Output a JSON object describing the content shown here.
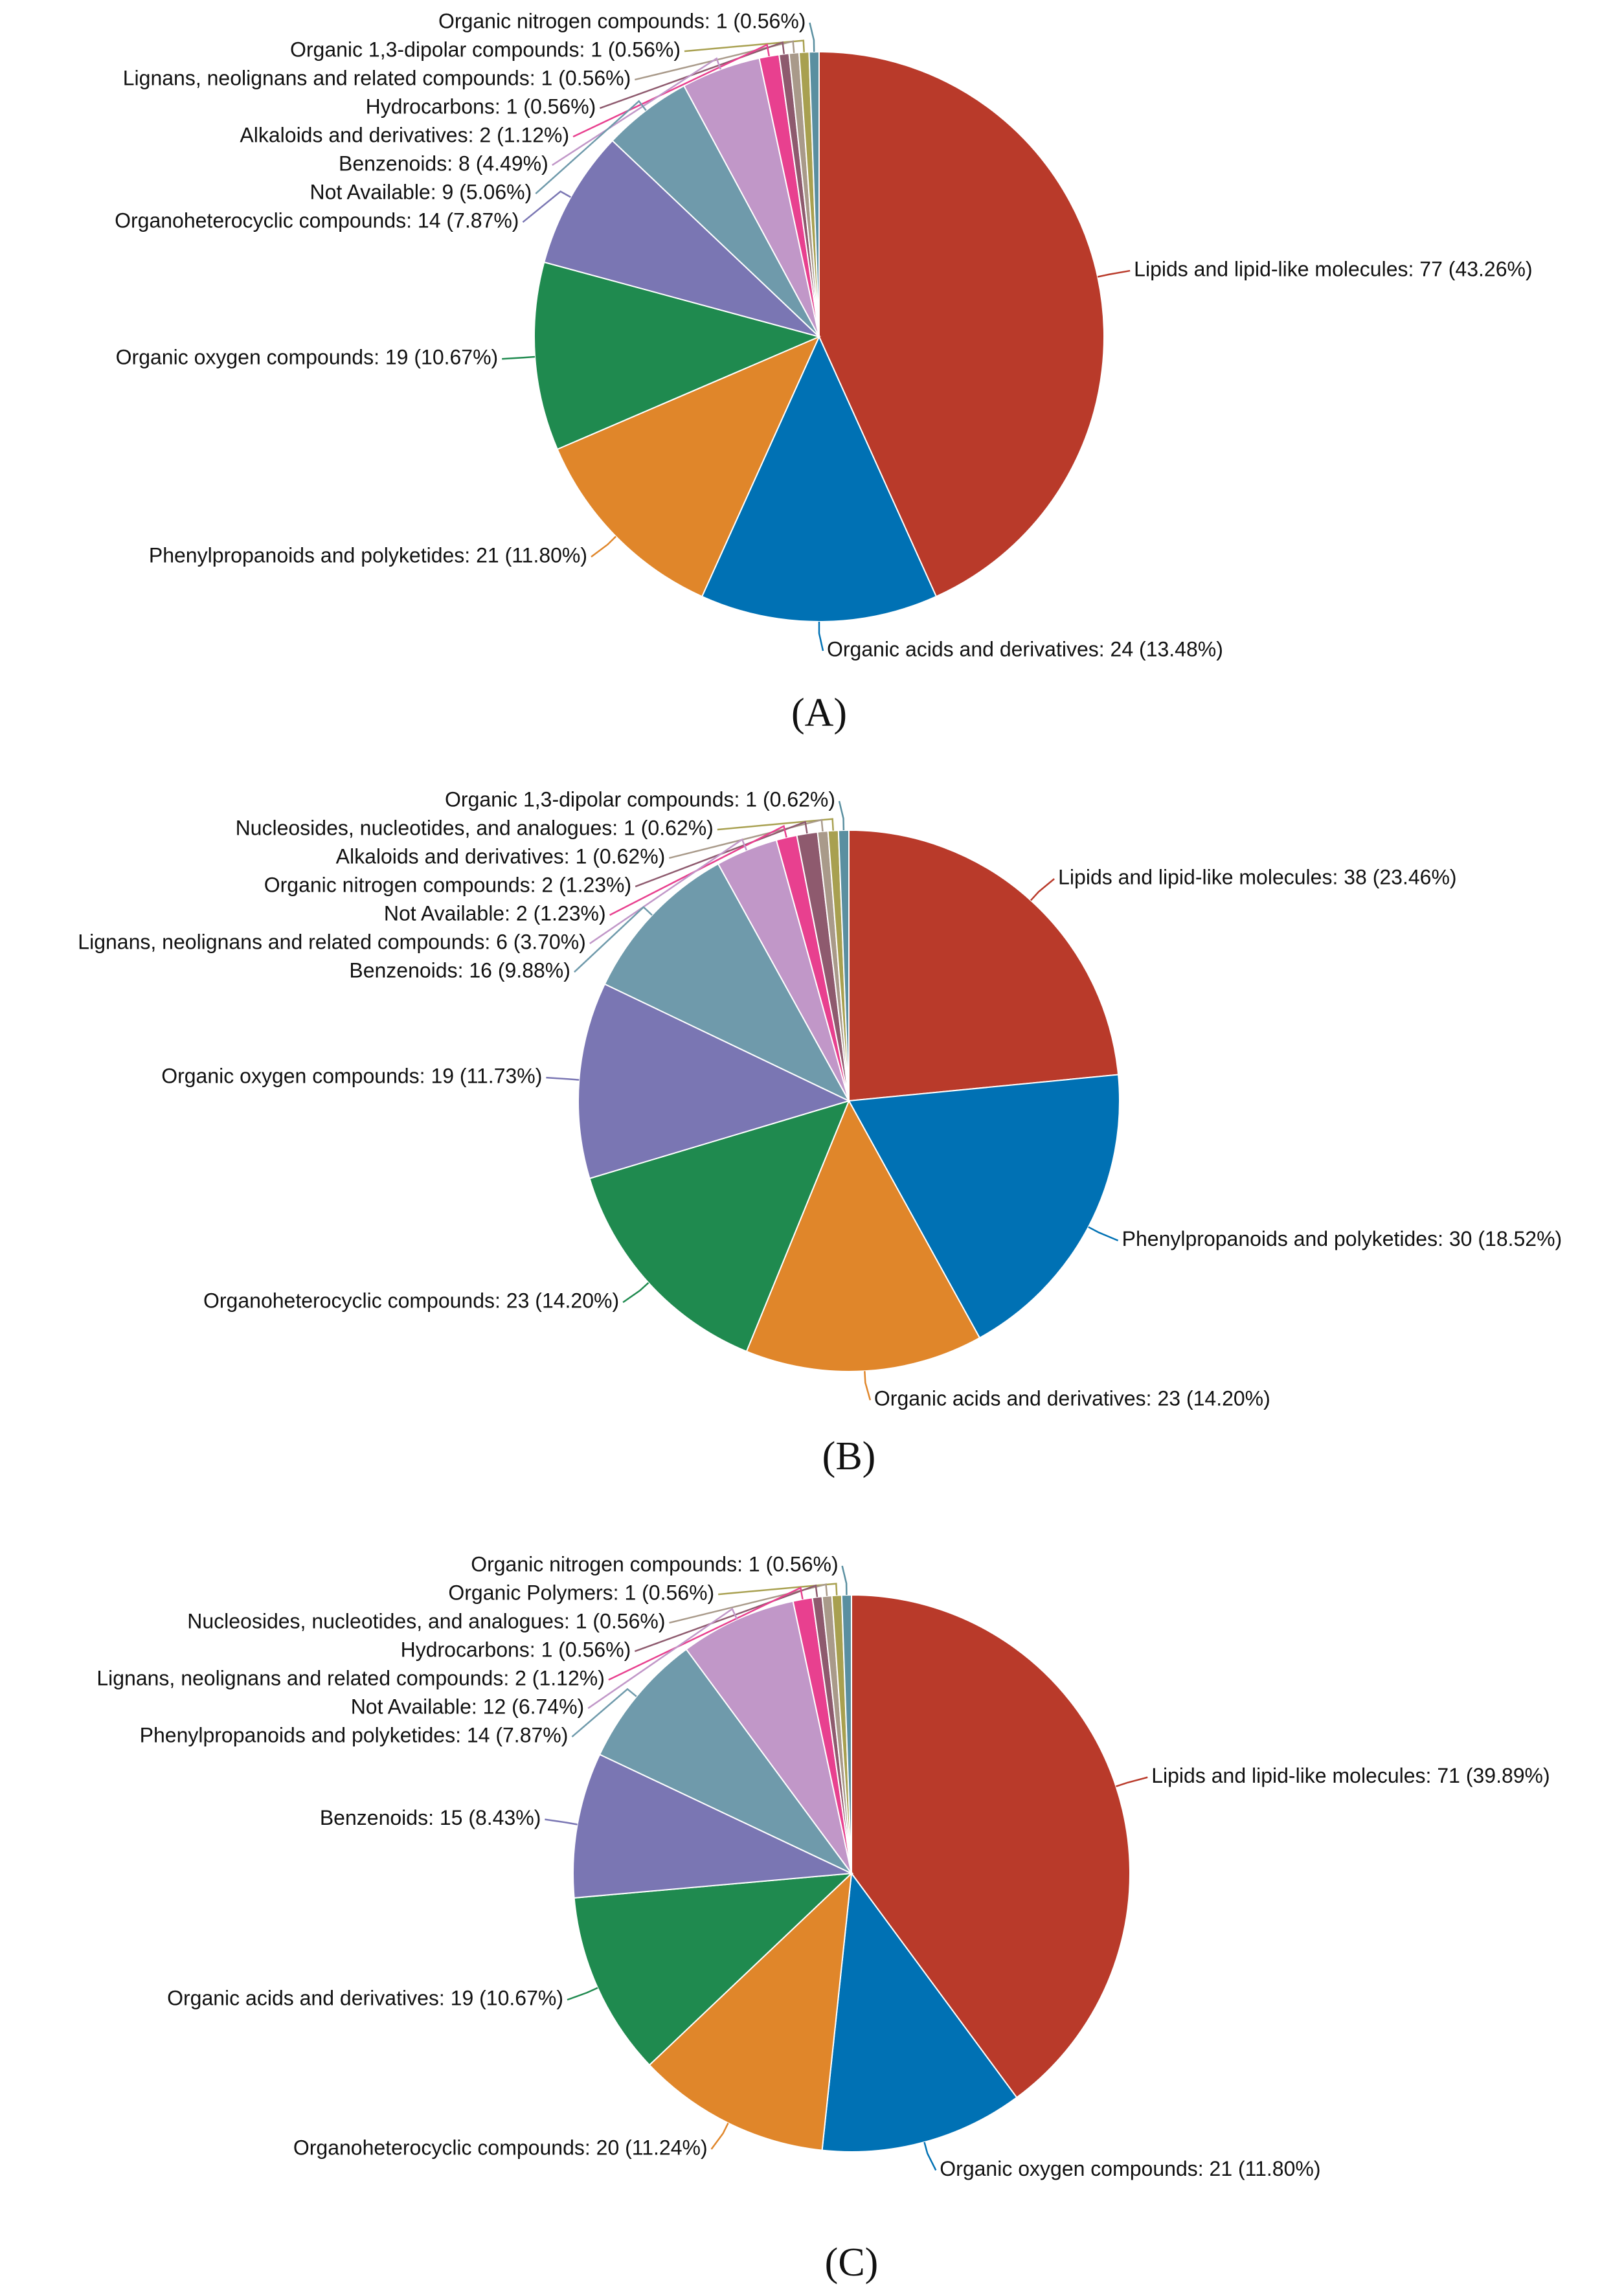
{
  "chart_data": [
    {
      "type": "pie",
      "title": "(A)",
      "labels": [
        "Lipids and lipid-like molecules: 77 (43.26%)",
        "Organic acids and derivatives: 24 (13.48%)",
        "Phenylpropanoids and polyketides: 21 (11.80%)",
        "Organic oxygen compounds: 19 (10.67%)",
        "Organoheterocyclic compounds: 14 (7.87%)",
        "Not Available: 9 (5.06%)",
        "Benzenoids: 8 (4.49%)",
        "Alkaloids and derivatives: 2 (1.12%)",
        "Hydrocarbons: 1 (0.56%)",
        "Lignans, neolignans and related compounds: 1 (0.56%)",
        "Organic 1,3-dipolar compounds: 1 (0.56%)",
        "Organic nitrogen compounds: 1 (0.56%)"
      ],
      "values": [
        77,
        24,
        21,
        19,
        14,
        9,
        8,
        2,
        1,
        1,
        1,
        1
      ],
      "colors": [
        "#b93a2a",
        "#0071b4",
        "#e0862a",
        "#1f8a4f",
        "#7a76b3",
        "#6f9aab",
        "#c197c8",
        "#e8408f",
        "#8e5a6e",
        "#a99a8a",
        "#a8a050",
        "#5a8fa0"
      ]
    },
    {
      "type": "pie",
      "title": "(B)",
      "labels": [
        "Lipids and lipid-like molecules: 38 (23.46%)",
        "Phenylpropanoids and polyketides: 30 (18.52%)",
        "Organic acids and derivatives: 23 (14.20%)",
        "Organoheterocyclic compounds: 23 (14.20%)",
        "Organic oxygen compounds: 19 (11.73%)",
        "Benzenoids: 16 (9.88%)",
        "Lignans, neolignans and related compounds: 6 (3.70%)",
        "Not Available: 2 (1.23%)",
        "Organic nitrogen compounds: 2 (1.23%)",
        "Alkaloids and derivatives: 1 (0.62%)",
        "Nucleosides, nucleotides, and analogues: 1 (0.62%)",
        "Organic 1,3-dipolar compounds: 1 (0.62%)"
      ],
      "values": [
        38,
        30,
        23,
        23,
        19,
        16,
        6,
        2,
        2,
        1,
        1,
        1
      ],
      "colors": [
        "#b93a2a",
        "#0071b4",
        "#e0862a",
        "#1f8a4f",
        "#7a76b3",
        "#6f9aab",
        "#c197c8",
        "#e8408f",
        "#8e5a6e",
        "#a99a8a",
        "#a8a050",
        "#5a8fa0"
      ]
    },
    {
      "type": "pie",
      "title": "(C)",
      "labels": [
        "Lipids and lipid-like molecules: 71 (39.89%)",
        "Organic oxygen compounds: 21 (11.80%)",
        "Organoheterocyclic compounds: 20 (11.24%)",
        "Organic acids and derivatives: 19 (10.67%)",
        "Benzenoids: 15 (8.43%)",
        "Phenylpropanoids and polyketides: 14 (7.87%)",
        "Not Available: 12 (6.74%)",
        "Lignans, neolignans and related compounds: 2 (1.12%)",
        "Hydrocarbons: 1 (0.56%)",
        "Nucleosides, nucleotides, and analogues: 1 (0.56%)",
        "Organic Polymers: 1 (0.56%)",
        "Organic nitrogen compounds: 1 (0.56%)"
      ],
      "values": [
        71,
        21,
        20,
        19,
        15,
        14,
        12,
        2,
        1,
        1,
        1,
        1
      ],
      "colors": [
        "#b93a2a",
        "#0071b4",
        "#e0862a",
        "#1f8a4f",
        "#7a76b3",
        "#6f9aab",
        "#c197c8",
        "#e8408f",
        "#8e5a6e",
        "#a99a8a",
        "#a8a050",
        "#5a8fa0"
      ]
    }
  ]
}
